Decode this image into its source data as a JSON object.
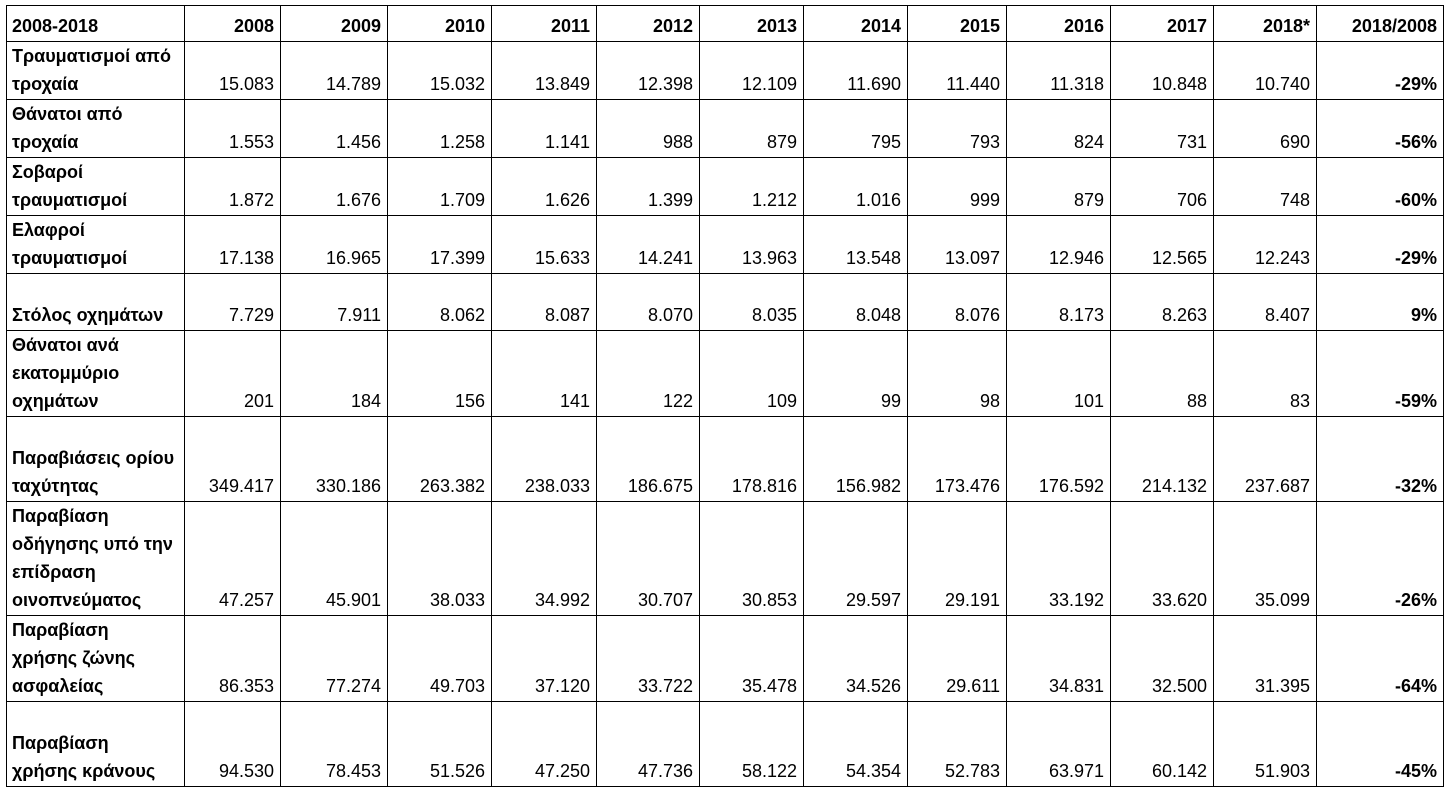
{
  "table": {
    "header": [
      "2008-2018",
      "2008",
      "2009",
      "2010",
      "2011",
      "2012",
      "2013",
      "2014",
      "2015",
      "2016",
      "2017",
      "2018*",
      "2018/2008"
    ],
    "rows": [
      [
        "Τραυματισμοί από τροχαία",
        "15.083",
        "14.789",
        "15.032",
        "13.849",
        "12.398",
        "12.109",
        "11.690",
        "11.440",
        "11.318",
        "10.848",
        "10.740",
        "-29%"
      ],
      [
        "Θάνατοι από τροχαία",
        "1.553",
        "1.456",
        "1.258",
        "1.141",
        "988",
        "879",
        "795",
        "793",
        "824",
        "731",
        "690",
        "-56%"
      ],
      [
        "Σοβαροί τραυματισμοί",
        "1.872",
        "1.676",
        "1.709",
        "1.626",
        "1.399",
        "1.212",
        "1.016",
        "999",
        "879",
        "706",
        "748",
        "-60%"
      ],
      [
        "Ελαφροί τραυματισμοί",
        "17.138",
        "16.965",
        "17.399",
        "15.633",
        "14.241",
        "13.963",
        "13.548",
        "13.097",
        "12.946",
        "12.565",
        "12.243",
        "-29%"
      ],
      [
        "Στόλος οχημάτων",
        "7.729",
        "7.911",
        "8.062",
        "8.087",
        "8.070",
        "8.035",
        "8.048",
        "8.076",
        "8.173",
        "8.263",
        "8.407",
        "9%"
      ],
      [
        "Θάνατοι ανά εκατομμύριο οχημάτων",
        "201",
        "184",
        "156",
        "141",
        "122",
        "109",
        "99",
        "98",
        "101",
        "88",
        "83",
        "-59%"
      ],
      [
        "Παραβιάσεις ορίου ταχύτητας",
        "349.417",
        "330.186",
        "263.382",
        "238.033",
        "186.675",
        "178.816",
        "156.982",
        "173.476",
        "176.592",
        "214.132",
        "237.687",
        "-32%"
      ],
      [
        "Παραβίαση οδήγησης υπό την επίδραση οινοπνεύματος",
        "47.257",
        "45.901",
        "38.033",
        "34.992",
        "30.707",
        "30.853",
        "29.597",
        "29.191",
        "33.192",
        "33.620",
        "35.099",
        "-26%"
      ],
      [
        "Παραβίαση χρήσης ζώνης ασφαλείας",
        "86.353",
        "77.274",
        "49.703",
        "37.120",
        "33.722",
        "35.478",
        "34.526",
        "29.611",
        "34.831",
        "32.500",
        "31.395",
        "-64%"
      ],
      [
        "Παραβίαση χρήσης κράνους",
        "94.530",
        "78.453",
        "51.526",
        "47.250",
        "47.736",
        "58.122",
        "54.354",
        "52.783",
        "63.971",
        "60.142",
        "51.903",
        "-45%"
      ]
    ]
  }
}
